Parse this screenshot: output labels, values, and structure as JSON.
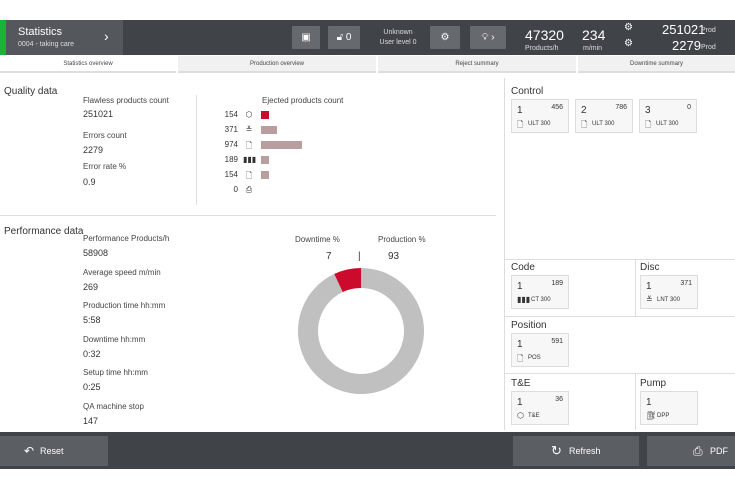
{
  "header": {
    "title": "Statistics",
    "subtitle": "0004 - taking care",
    "icon2_count": "0",
    "user_name": "Unknown",
    "user_level": "User level 0",
    "rate_value": "47320",
    "rate_unit": "Products/h",
    "speed_value": "234",
    "speed_unit": "m/min",
    "prod_value1": "251021",
    "prod_label1": "Prod",
    "prod_value2": "2279",
    "prod_label2": "Prod"
  },
  "tabs": [
    "Statistics overview",
    "Production overview",
    "Reject summary",
    "Downtime summary"
  ],
  "quality": {
    "title": "Quality data",
    "flawless_label": "Flawless products count",
    "flawless_value": "251021",
    "errors_label": "Errors count",
    "errors_value": "2279",
    "rate_label": "Error rate %",
    "rate_value": "0.9",
    "ejected_title": "Ejected products count",
    "ejected": [
      {
        "count": "154",
        "value": 154,
        "icon": "hex-icon",
        "glyph": "⬡",
        "color": "#cc0a2c"
      },
      {
        "count": "371",
        "value": 371,
        "icon": "lnt-icon",
        "glyph": "≚",
        "color": "#b99ea0"
      },
      {
        "count": "974",
        "value": 974,
        "icon": "ult-icon",
        "glyph": "🗋",
        "color": "#b99ea0"
      },
      {
        "count": "189",
        "value": 189,
        "icon": "barcode-icon",
        "glyph": "▮▮▮",
        "color": "#b99ea0"
      },
      {
        "count": "154",
        "value": 154,
        "icon": "document-icon",
        "glyph": "🗋",
        "color": "#b99ea0"
      },
      {
        "count": "0",
        "value": 0,
        "icon": "printer-icon",
        "glyph": "⎙",
        "color": "#b99ea0"
      }
    ]
  },
  "performance": {
    "title": "Performance data",
    "items": [
      {
        "label": "Performance Products/h",
        "value": "58908"
      },
      {
        "label": "Average speed m/min",
        "value": "269"
      },
      {
        "label": "Production time hh:mm",
        "value": "5:58"
      },
      {
        "label": "Downtime hh:mm",
        "value": "0:32"
      },
      {
        "label": "Setup time hh:mm",
        "value": "0:25"
      },
      {
        "label": "QA machine stop",
        "value": "147"
      }
    ],
    "downtime_label": "Downtime %",
    "downtime_value": "7",
    "production_label": "Production %",
    "production_value": "93"
  },
  "donut": {
    "downtime": 7,
    "production": 93,
    "downtime_color": "#cc0a2c",
    "production_color": "#c0c0c0"
  },
  "control": {
    "title": "Control",
    "cards": [
      {
        "num": "1",
        "value": "456",
        "label": "ULT 300"
      },
      {
        "num": "2",
        "value": "786",
        "label": "ULT 300"
      },
      {
        "num": "3",
        "value": "0",
        "label": "ULT 300"
      }
    ]
  },
  "code": {
    "title": "Code",
    "num": "1",
    "value": "189",
    "label": "CT 300"
  },
  "disc": {
    "title": "Disc",
    "num": "1",
    "value": "371",
    "label": "LNT 300"
  },
  "position": {
    "title": "Position",
    "num": "1",
    "value": "591",
    "label": "POS"
  },
  "te": {
    "title": "T&E",
    "num": "1",
    "value": "36",
    "label": "T&E"
  },
  "pump": {
    "title": "Pump",
    "num": "1",
    "value": "",
    "label": "DPP"
  },
  "footer": {
    "reset": "Reset",
    "refresh": "Refresh",
    "pdf": "PDF"
  },
  "colors": {
    "accent": "#19b33c",
    "reject": "#cc0a2c",
    "bar": "#b99ea0"
  }
}
